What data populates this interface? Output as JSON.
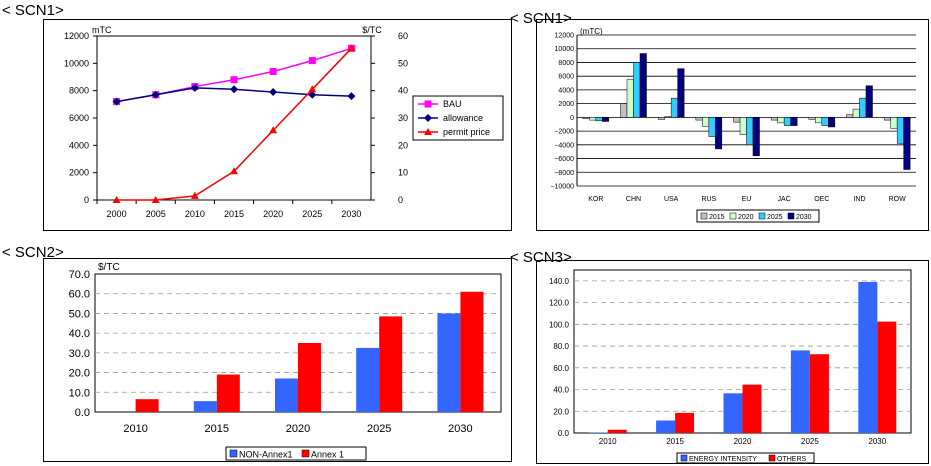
{
  "panels": {
    "p1": {
      "label": "< SCN1>"
    },
    "p2": {
      "label": "< SCN1>"
    },
    "p3": {
      "label": "< SCN2>"
    },
    "p4": {
      "label": "< SCN3>"
    }
  },
  "chart_data": [
    {
      "type": "line",
      "x": [
        "2000",
        "2005",
        "2010",
        "2015",
        "2020",
        "2025",
        "2030"
      ],
      "left_unit": "mTC",
      "right_unit": "$/TC",
      "ylim": [
        0,
        12000
      ],
      "y2lim": [
        0,
        60
      ],
      "yticks": [
        "0",
        "2000",
        "4000",
        "6000",
        "8000",
        "10000",
        "12000"
      ],
      "y2ticks": [
        "0",
        "10",
        "20",
        "30",
        "40",
        "50",
        "60"
      ],
      "legend_position": "right",
      "series": [
        {
          "name": "BAU",
          "axis": "left",
          "color": "#ff00ff",
          "marker": "square",
          "values": [
            7200,
            7700,
            8300,
            8800,
            9400,
            10200,
            11100
          ]
        },
        {
          "name": "allowance",
          "axis": "left",
          "color": "#000080",
          "marker": "diamond",
          "values": [
            7200,
            7700,
            8200,
            8100,
            7900,
            7700,
            7600
          ]
        },
        {
          "name": "permit price",
          "axis": "right",
          "color": "#ff0000",
          "marker": "triangle",
          "values": [
            0,
            0,
            1.5,
            10.5,
            25.5,
            40.5,
            55.5
          ]
        }
      ]
    },
    {
      "type": "bar",
      "unit": "(mTC)",
      "categories": [
        "KOR",
        "CHN",
        "USA",
        "RUS",
        "EU",
        "JAC",
        "OEC",
        "IND",
        "ROW"
      ],
      "ylim": [
        -10000,
        12000
      ],
      "yticks": [
        "−10000",
        "−8000",
        "−6000",
        "−4000",
        "−2000",
        "0",
        "2000",
        "4000",
        "6000",
        "8000",
        "10000",
        "12000"
      ],
      "legend_position": "bottom",
      "series": [
        {
          "name": "2015",
          "color": "#c0c0c0",
          "values": [
            -200,
            2000,
            -300,
            -400,
            -700,
            -400,
            -300,
            400,
            -400
          ]
        },
        {
          "name": "2020",
          "color": "#ccffcc",
          "values": [
            -400,
            5500,
            100,
            -1300,
            -2500,
            -800,
            -800,
            1200,
            -1600
          ]
        },
        {
          "name": "2025",
          "color": "#33ccff",
          "values": [
            -500,
            8000,
            2800,
            -2800,
            -4000,
            -1200,
            -1200,
            2800,
            -3800
          ]
        },
        {
          "name": "2030",
          "color": "#000080",
          "values": [
            -600,
            9300,
            7100,
            -4600,
            -5600,
            -1200,
            -1400,
            4600,
            -7600
          ]
        }
      ]
    },
    {
      "type": "bar",
      "unit": "$/TC",
      "categories": [
        "2010",
        "2015",
        "2020",
        "2025",
        "2030"
      ],
      "ylim": [
        0,
        70
      ],
      "yticks": [
        "0.0",
        "10.0",
        "20.0",
        "30.0",
        "40.0",
        "50.0",
        "60.0",
        "70.0"
      ],
      "legend_position": "bottom",
      "series": [
        {
          "name": "NON-Annex1",
          "color": "#3366ff",
          "values": [
            0.0,
            5.5,
            17.0,
            32.5,
            50.0
          ]
        },
        {
          "name": "Annex 1",
          "color": "#ff0000",
          "values": [
            6.5,
            19.0,
            35.0,
            48.5,
            61.0
          ]
        }
      ]
    },
    {
      "type": "bar",
      "categories": [
        "2010",
        "2015",
        "2020",
        "2025",
        "2030"
      ],
      "ylim": [
        0,
        150
      ],
      "yticks": [
        "0.0",
        "20.0",
        "40.0",
        "60.0",
        "80.0",
        "100.0",
        "120.0",
        "140.0"
      ],
      "legend_position": "bottom",
      "series": [
        {
          "name": "ENERGY INTENSITY",
          "color": "#3366ff",
          "values": [
            0.5,
            11.5,
            36.5,
            76.0,
            139.0
          ]
        },
        {
          "name": "OTHERS",
          "color": "#ff0000",
          "values": [
            3.0,
            18.5,
            44.5,
            72.5,
            102.5
          ]
        }
      ]
    }
  ]
}
